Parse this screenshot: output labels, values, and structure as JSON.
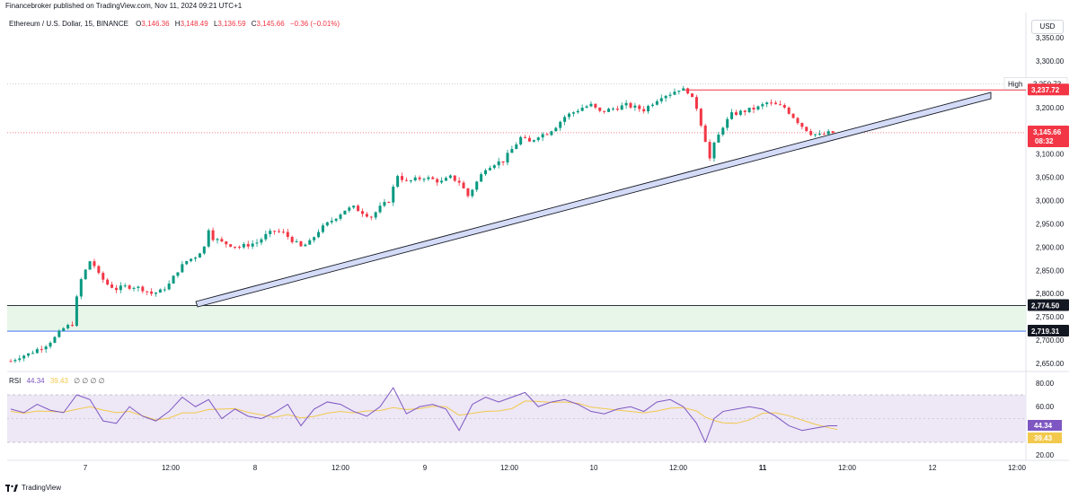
{
  "header": {
    "publisher": "Financebroker published on TradingView.com, Nov 11, 2024 09:21 UTC+1",
    "symbol": "Ethereum / U.S. Dollar, 15, BINANCE",
    "o_label": "O",
    "o_value": "3,146.36",
    "h_label": "H",
    "h_value": "3,148.49",
    "l_label": "L",
    "l_value": "3,136.59",
    "c_label": "C",
    "c_value": "3,145.66",
    "change": "−0.36 (−0.01%)"
  },
  "currency": "USD",
  "rsi_legend": {
    "name": "RSI",
    "value": "44.34",
    "ma_value": "39.43",
    "placeholders": "∅ ∅ ∅ ∅"
  },
  "footer": {
    "brand": "TradingView"
  },
  "colors": {
    "up": "#089981",
    "down": "#f23645",
    "trendline_fill": "#d4dbf7",
    "zone_fill": "#e8f5e9",
    "rsi_line": "#7e57c2",
    "rsi_ma": "#f2c94c",
    "rsi_band": "#ede7f6"
  },
  "chart_data": {
    "type": "candlestick",
    "symbol": "Ethereum / U.S. Dollar",
    "interval": "15",
    "price_axis": {
      "ticks": [
        "3,350.00",
        "3,300.00",
        "3,250.00",
        "3,200.00",
        "3,150.00",
        "3,100.00",
        "3,050.00",
        "3,000.00",
        "2,950.00",
        "2,900.00",
        "2,850.00",
        "2,800.00",
        "2,750.00",
        "2,700.00",
        "2,650.00"
      ],
      "range": [
        2640,
        3370
      ]
    },
    "time_axis": {
      "ticks": [
        "7",
        "12:00",
        "8",
        "12:00",
        "9",
        "12:00",
        "10",
        "12:00",
        "11",
        "12:00",
        "12",
        "12:00"
      ]
    },
    "price_path": [
      [
        0,
        2655
      ],
      [
        2,
        2665
      ],
      [
        4,
        2670
      ],
      [
        6,
        2680
      ],
      [
        8,
        2690
      ],
      [
        10,
        2705
      ],
      [
        12,
        2725
      ],
      [
        14,
        2735
      ],
      [
        15,
        2790
      ],
      [
        16,
        2830
      ],
      [
        17,
        2850
      ],
      [
        18,
        2870
      ],
      [
        19,
        2860
      ],
      [
        20,
        2840
      ],
      [
        22,
        2820
      ],
      [
        24,
        2810
      ],
      [
        26,
        2815
      ],
      [
        28,
        2815
      ],
      [
        30,
        2810
      ],
      [
        32,
        2800
      ],
      [
        34,
        2805
      ],
      [
        36,
        2820
      ],
      [
        38,
        2850
      ],
      [
        40,
        2870
      ],
      [
        42,
        2880
      ],
      [
        44,
        2900
      ],
      [
        45,
        2940
      ],
      [
        46,
        2920
      ],
      [
        48,
        2910
      ],
      [
        50,
        2905
      ],
      [
        52,
        2900
      ],
      [
        54,
        2905
      ],
      [
        56,
        2910
      ],
      [
        58,
        2925
      ],
      [
        60,
        2935
      ],
      [
        62,
        2930
      ],
      [
        64,
        2915
      ],
      [
        66,
        2900
      ],
      [
        68,
        2910
      ],
      [
        70,
        2935
      ],
      [
        72,
        2950
      ],
      [
        74,
        2965
      ],
      [
        76,
        2980
      ],
      [
        78,
        2985
      ],
      [
        80,
        2975
      ],
      [
        82,
        2965
      ],
      [
        84,
        2985
      ],
      [
        86,
        3000
      ],
      [
        88,
        3055
      ],
      [
        90,
        3040
      ],
      [
        92,
        3045
      ],
      [
        94,
        3050
      ],
      [
        96,
        3045
      ],
      [
        98,
        3040
      ],
      [
        100,
        3050
      ],
      [
        102,
        3040
      ],
      [
        104,
        3010
      ],
      [
        106,
        3040
      ],
      [
        108,
        3070
      ],
      [
        110,
        3080
      ],
      [
        112,
        3085
      ],
      [
        114,
        3110
      ],
      [
        116,
        3135
      ],
      [
        118,
        3125
      ],
      [
        120,
        3140
      ],
      [
        122,
        3145
      ],
      [
        124,
        3160
      ],
      [
        126,
        3180
      ],
      [
        128,
        3190
      ],
      [
        130,
        3200
      ],
      [
        132,
        3205
      ],
      [
        134,
        3190
      ],
      [
        136,
        3195
      ],
      [
        138,
        3200
      ],
      [
        140,
        3205
      ],
      [
        142,
        3200
      ],
      [
        144,
        3195
      ],
      [
        146,
        3210
      ],
      [
        148,
        3225
      ],
      [
        150,
        3230
      ],
      [
        152,
        3240
      ],
      [
        154,
        3235
      ],
      [
        156,
        3200
      ],
      [
        158,
        3130
      ],
      [
        159,
        3090
      ],
      [
        160,
        3120
      ],
      [
        162,
        3160
      ],
      [
        164,
        3185
      ],
      [
        166,
        3190
      ],
      [
        168,
        3195
      ],
      [
        170,
        3200
      ],
      [
        172,
        3210
      ],
      [
        174,
        3205
      ],
      [
        176,
        3200
      ],
      [
        178,
        3180
      ],
      [
        180,
        3160
      ],
      [
        182,
        3145
      ],
      [
        184,
        3140
      ],
      [
        186,
        3145
      ],
      [
        188,
        3146
      ]
    ],
    "rsi": {
      "ticks": [
        "80.00",
        "60.00",
        "20.00"
      ],
      "value": "44.34",
      "ma_value": "39.43",
      "overbought": 70,
      "oversold": 30,
      "series": [
        [
          0,
          58
        ],
        [
          3,
          55
        ],
        [
          6,
          62
        ],
        [
          9,
          57
        ],
        [
          12,
          55
        ],
        [
          15,
          70
        ],
        [
          18,
          66
        ],
        [
          21,
          48
        ],
        [
          24,
          46
        ],
        [
          27,
          60
        ],
        [
          30,
          52
        ],
        [
          33,
          48
        ],
        [
          36,
          56
        ],
        [
          39,
          68
        ],
        [
          42,
          60
        ],
        [
          45,
          66
        ],
        [
          48,
          50
        ],
        [
          51,
          58
        ],
        [
          54,
          52
        ],
        [
          57,
          50
        ],
        [
          60,
          55
        ],
        [
          63,
          62
        ],
        [
          66,
          44
        ],
        [
          69,
          58
        ],
        [
          72,
          64
        ],
        [
          75,
          62
        ],
        [
          78,
          56
        ],
        [
          81,
          52
        ],
        [
          84,
          60
        ],
        [
          87,
          76
        ],
        [
          90,
          54
        ],
        [
          93,
          60
        ],
        [
          96,
          62
        ],
        [
          99,
          58
        ],
        [
          102,
          40
        ],
        [
          105,
          62
        ],
        [
          108,
          68
        ],
        [
          111,
          64
        ],
        [
          114,
          68
        ],
        [
          117,
          72
        ],
        [
          120,
          60
        ],
        [
          123,
          64
        ],
        [
          126,
          66
        ],
        [
          129,
          62
        ],
        [
          132,
          56
        ],
        [
          135,
          54
        ],
        [
          138,
          58
        ],
        [
          141,
          60
        ],
        [
          144,
          56
        ],
        [
          147,
          64
        ],
        [
          150,
          66
        ],
        [
          153,
          60
        ],
        [
          156,
          46
        ],
        [
          158,
          30
        ],
        [
          160,
          50
        ],
        [
          162,
          56
        ],
        [
          165,
          58
        ],
        [
          168,
          60
        ],
        [
          171,
          58
        ],
        [
          174,
          52
        ],
        [
          177,
          44
        ],
        [
          180,
          40
        ],
        [
          183,
          42
        ],
        [
          186,
          44
        ],
        [
          188,
          44
        ]
      ]
    },
    "levels": [
      {
        "label": "High",
        "value": "3,250.73"
      },
      {
        "label": "",
        "value": "3,237.72",
        "color": "#f23645"
      },
      {
        "label": "",
        "value": "3,145.66",
        "color": "#f23645",
        "countdown": "08:32"
      },
      {
        "label": "",
        "value": "2,774.50",
        "color": "#131722"
      },
      {
        "label": "",
        "value": "2,719.31",
        "color": "#131722"
      }
    ],
    "ylabel": "USD"
  }
}
